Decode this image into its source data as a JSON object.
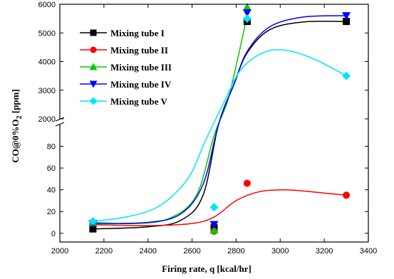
{
  "chart_data": {
    "type": "scatter",
    "xlabel": "Firing rate, q  [kcal/hr]",
    "ylabel": "CO@0%O",
    "ylabel_sub": "2",
    "ylabel_unit": " [ppm]",
    "xlim": [
      2000,
      3400
    ],
    "x_ticks": [
      "2000",
      "2200",
      "2400",
      "2600",
      "2800",
      "3000",
      "3200",
      "3400"
    ],
    "y_lower_range": [
      -8,
      100
    ],
    "y_lower_ticks": [
      "0",
      "20",
      "40",
      "60",
      "80"
    ],
    "y_upper_range": [
      2000,
      6000
    ],
    "y_upper_ticks": [
      "2000",
      "3000",
      "4000",
      "5000",
      "6000"
    ],
    "axis_break": true,
    "legend_position": "top-left",
    "series": [
      {
        "name": "Mixing tube I",
        "color": "#000000",
        "marker": "square",
        "x": [
          2150,
          2700,
          2850,
          3300
        ],
        "y": [
          4,
          5,
          5400,
          5400
        ],
        "curve": [
          [
            2150,
            4
          ],
          [
            2400,
            6
          ],
          [
            2550,
            12
          ],
          [
            2650,
            35
          ],
          [
            2720,
            120
          ],
          [
            2790,
            3200
          ],
          [
            2850,
            4300
          ],
          [
            2950,
            5100
          ],
          [
            3100,
            5380
          ],
          [
            3300,
            5400
          ]
        ]
      },
      {
        "name": "Mixing tube II",
        "color": "#ff0000",
        "marker": "circle",
        "x": [
          2150,
          2700,
          2850,
          3300
        ],
        "y": [
          9,
          2,
          46,
          35
        ],
        "curve": [
          [
            2150,
            8
          ],
          [
            2400,
            7
          ],
          [
            2600,
            9
          ],
          [
            2700,
            15
          ],
          [
            2800,
            30
          ],
          [
            2900,
            38
          ],
          [
            3000,
            40
          ],
          [
            3100,
            39
          ],
          [
            3200,
            37
          ],
          [
            3300,
            35
          ]
        ]
      },
      {
        "name": "Mixing tube III",
        "color": "#00cc00",
        "marker": "triangle-up",
        "x": [
          2150,
          2700,
          2850
        ],
        "y": [
          10,
          3,
          5900
        ],
        "curve": [
          [
            2150,
            10
          ],
          [
            2350,
            9
          ],
          [
            2500,
            14
          ],
          [
            2620,
            35
          ],
          [
            2700,
            90
          ],
          [
            2760,
            2600
          ],
          [
            2810,
            4200
          ],
          [
            2850,
            5600
          ]
        ]
      },
      {
        "name": "Mixing tube IV",
        "color": "#0000ff",
        "marker": "triangle-down",
        "x": [
          2150,
          2700,
          2850,
          3300
        ],
        "y": [
          9,
          8,
          5700,
          5600
        ],
        "curve": [
          [
            2150,
            9
          ],
          [
            2400,
            10
          ],
          [
            2550,
            18
          ],
          [
            2650,
            45
          ],
          [
            2720,
            150
          ],
          [
            2790,
            3200
          ],
          [
            2850,
            4350
          ],
          [
            2950,
            5200
          ],
          [
            3100,
            5550
          ],
          [
            3300,
            5600
          ]
        ]
      },
      {
        "name": "Mixing tube V",
        "color": "#00e5ff",
        "marker": "diamond",
        "x": [
          2150,
          2700,
          2850,
          3300
        ],
        "y": [
          11,
          24,
          5500,
          3500
        ],
        "curve": [
          [
            2150,
            11
          ],
          [
            2300,
            15
          ],
          [
            2450,
            25
          ],
          [
            2580,
            50
          ],
          [
            2660,
            85
          ],
          [
            2740,
            2500
          ],
          [
            2820,
            3700
          ],
          [
            2920,
            4300
          ],
          [
            3020,
            4400
          ],
          [
            3150,
            4100
          ],
          [
            3300,
            3500
          ]
        ]
      }
    ]
  }
}
